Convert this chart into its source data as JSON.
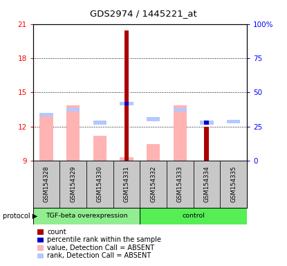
{
  "title": "GDS2974 / 1445221_at",
  "samples": [
    "GSM154328",
    "GSM154329",
    "GSM154330",
    "GSM154331",
    "GSM154332",
    "GSM154333",
    "GSM154334",
    "GSM154335"
  ],
  "ylim_left": [
    9,
    21
  ],
  "ylim_right": [
    0,
    100
  ],
  "yticks_left": [
    9,
    12,
    15,
    18,
    21
  ],
  "yticks_right": [
    0,
    25,
    50,
    75,
    100
  ],
  "ytick_labels_left": [
    "9",
    "12",
    "15",
    "18",
    "21"
  ],
  "ytick_labels_right": [
    "0",
    "25",
    "50",
    "75",
    "100%"
  ],
  "value_bars": [
    13.1,
    13.9,
    11.2,
    9.3,
    10.5,
    13.9,
    9.0,
    9.0
  ],
  "rank_bars": [
    12.9,
    13.3,
    12.2,
    13.85,
    12.5,
    13.3,
    12.2,
    12.3
  ],
  "count_bars": [
    0,
    0,
    0,
    20.4,
    0,
    0,
    12.0,
    0
  ],
  "percentile_bars": [
    0,
    0,
    0,
    13.85,
    0,
    0,
    12.2,
    0
  ],
  "count_is_present": [
    false,
    false,
    false,
    true,
    false,
    false,
    true,
    false
  ],
  "percentile_is_present": [
    false,
    false,
    false,
    true,
    false,
    false,
    true,
    false
  ],
  "value_color": "#ffb3b3",
  "rank_color": "#b3c8ff",
  "count_color": "#aa0000",
  "percentile_color": "#0000cc",
  "sample_bg": "#c8c8c8",
  "group1_color": "#90EE90",
  "group2_color": "#55ee55",
  "legend_items": [
    {
      "color": "#aa0000",
      "label": "count"
    },
    {
      "color": "#0000cc",
      "label": "percentile rank within the sample"
    },
    {
      "color": "#ffb3b3",
      "label": "value, Detection Call = ABSENT"
    },
    {
      "color": "#b3c8ff",
      "label": "rank, Detection Call = ABSENT"
    }
  ]
}
